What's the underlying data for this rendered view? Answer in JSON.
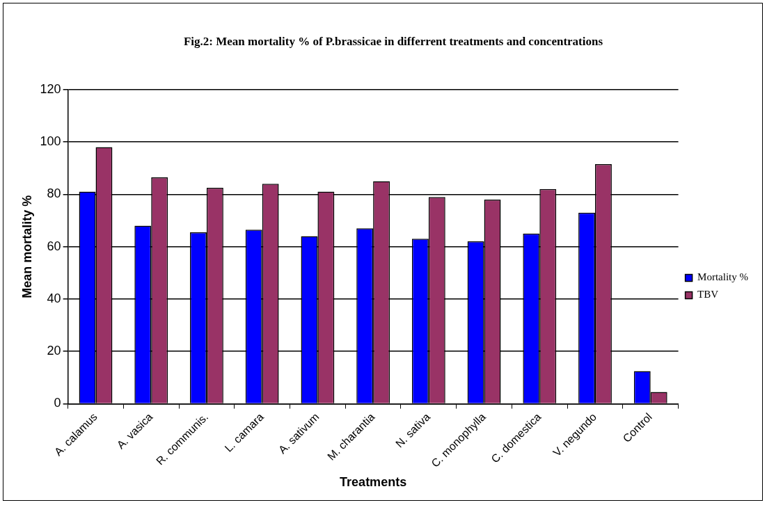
{
  "chart_data": {
    "type": "bar",
    "title": "Fig.2: Mean mortality %  of P.brassicae in differrent treatments and concentrations",
    "xlabel": "Treatments",
    "ylabel": "Mean mortality %",
    "categories": [
      "A. calamus",
      "A. vasica",
      "R. communis.",
      "L. camara",
      "A. sativum",
      "M. charantia",
      "N. sativa",
      "C. monophylla",
      "C. domestica",
      "V. negundo",
      "Control"
    ],
    "series": [
      {
        "name": "Mortality %",
        "color": "#0000ff",
        "values": [
          81,
          68,
          65.5,
          66.5,
          64,
          67,
          63,
          62,
          65,
          73,
          12.5
        ]
      },
      {
        "name": "TBV",
        "color": "#993366",
        "values": [
          98,
          86.5,
          82.5,
          84,
          81,
          85,
          79,
          78,
          82,
          91.5,
          4.5
        ]
      }
    ],
    "ylim": [
      0,
      120
    ],
    "yticks": [
      0,
      20,
      40,
      60,
      80,
      100,
      120
    ],
    "grid": "y",
    "legend": "right"
  }
}
